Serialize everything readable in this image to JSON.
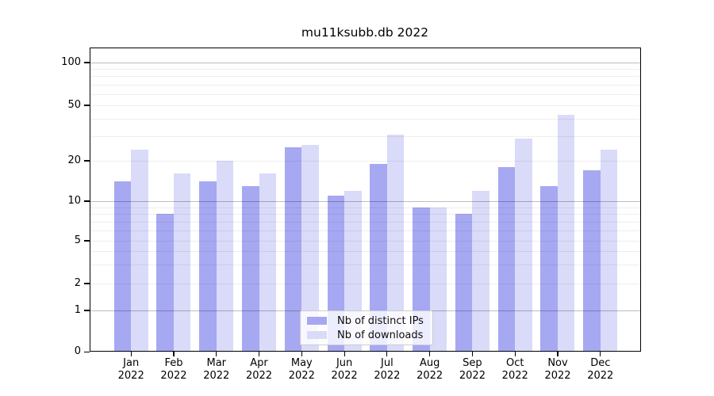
{
  "title": "mu11ksubb.db 2022",
  "chart_data": {
    "type": "bar",
    "title": "mu11ksubb.db 2022",
    "categories": [
      "Jan",
      "Feb",
      "Mar",
      "Apr",
      "May",
      "Jun",
      "Jul",
      "Aug",
      "Sep",
      "Oct",
      "Nov",
      "Dec"
    ],
    "year": "2022",
    "x_tick_labels": [
      "Jan 2022",
      "Feb 2022",
      "Mar 2022",
      "Apr 2022",
      "May 2022",
      "Jun 2022",
      "Jul 2022",
      "Aug 2022",
      "Sep 2022",
      "Oct 2022",
      "Nov 2022",
      "Dec 2022"
    ],
    "series": [
      {
        "name": "Nb of distinct IPs",
        "color": "#a6a8f2",
        "values": [
          14,
          8,
          14,
          13,
          25,
          11,
          19,
          9,
          8,
          18,
          13,
          17
        ]
      },
      {
        "name": "Nb of downloads",
        "color": "#d9dbf9",
        "values": [
          24,
          16,
          20,
          16,
          26,
          12,
          31,
          9,
          12,
          29,
          43,
          24
        ]
      }
    ],
    "yscale": "symlog",
    "y_tick_values": [
      0,
      1,
      2,
      5,
      10,
      20,
      50,
      100
    ],
    "y_minor_grid_values": [
      2,
      3,
      4,
      5,
      6,
      7,
      8,
      9,
      20,
      30,
      40,
      50,
      60,
      70,
      80,
      90
    ],
    "y_major_grid_values": [
      1,
      10,
      100
    ],
    "ylim": [
      0,
      120
    ],
    "grid": "both",
    "legend_position": "lower center"
  },
  "colors": {
    "background": "#ffffff",
    "axis": "#000000",
    "grid_major": "#bdbdbd",
    "grid_minor": "#ededed"
  }
}
